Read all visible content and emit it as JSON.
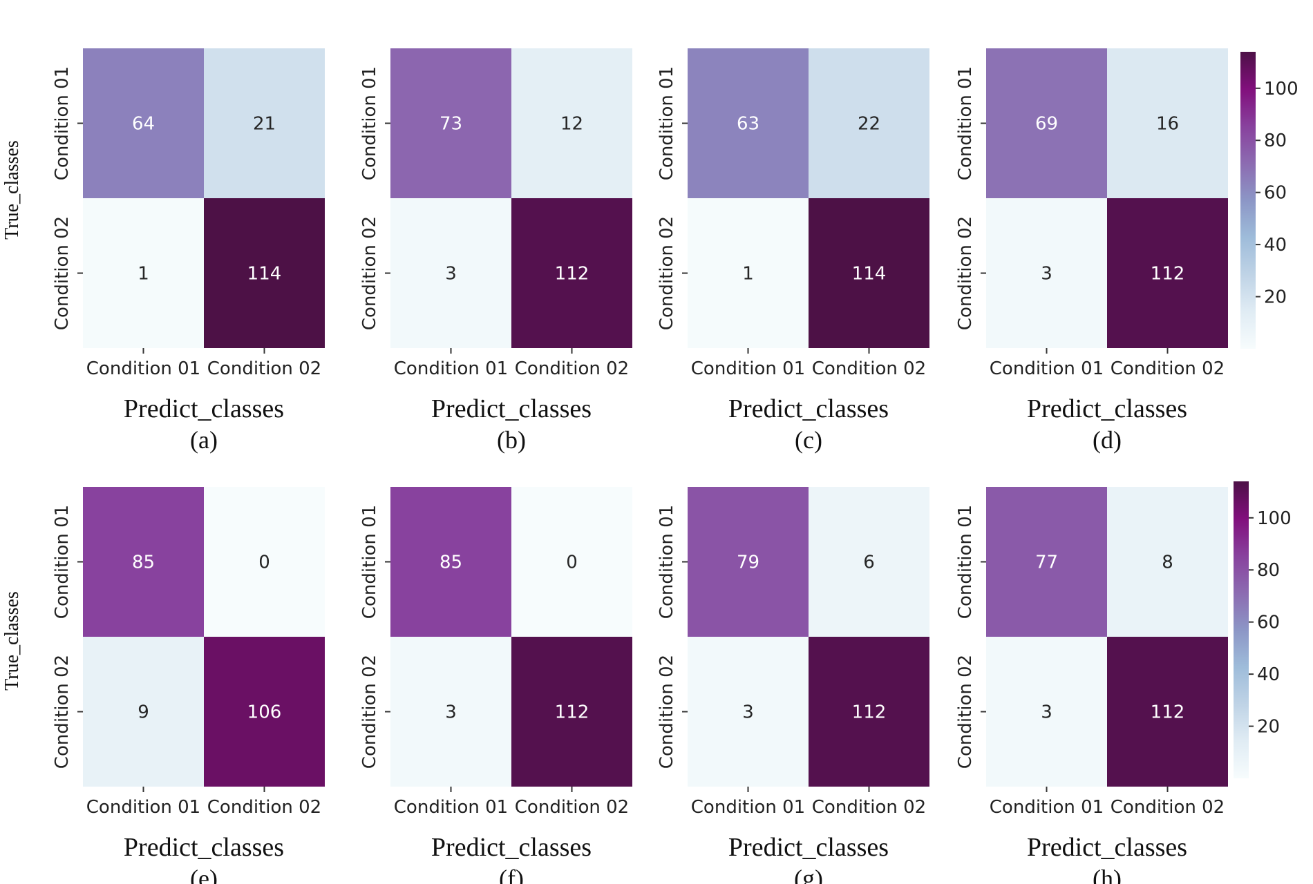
{
  "figure": {
    "row_labels": [
      "True_classes",
      "True_classes"
    ]
  },
  "colormap": {
    "name": "BuPu",
    "min": 0,
    "max": 114,
    "stops": [
      "#f7fcfd",
      "#e0ecf4",
      "#bfd3e6",
      "#9ebcda",
      "#8c96c6",
      "#8c6bb1",
      "#88419d",
      "#810f7c",
      "#4d1146"
    ]
  },
  "colorbars": [
    {
      "ticks": [
        20,
        40,
        60,
        80,
        100
      ]
    },
    {
      "ticks": [
        20,
        40,
        60,
        80,
        100
      ]
    }
  ],
  "chart_data": [
    {
      "type": "heatmap",
      "panel_label": "(a)",
      "xlabel": "Predict_classes",
      "ylabel": "True_classes",
      "x_categories": [
        "Condition 01",
        "Condition 02"
      ],
      "y_categories": [
        "Condition 01",
        "Condition 02"
      ],
      "values": [
        [
          64,
          21
        ],
        [
          1,
          114
        ]
      ]
    },
    {
      "type": "heatmap",
      "panel_label": "(b)",
      "xlabel": "Predict_classes",
      "ylabel": "",
      "x_categories": [
        "Condition 01",
        "Condition 02"
      ],
      "y_categories": [
        "Condition 01",
        "Condition 02"
      ],
      "values": [
        [
          73,
          12
        ],
        [
          3,
          112
        ]
      ]
    },
    {
      "type": "heatmap",
      "panel_label": "(c)",
      "xlabel": "Predict_classes",
      "ylabel": "",
      "x_categories": [
        "Condition 01",
        "Condition 02"
      ],
      "y_categories": [
        "Condition 01",
        "Condition 02"
      ],
      "values": [
        [
          63,
          22
        ],
        [
          1,
          114
        ]
      ]
    },
    {
      "type": "heatmap",
      "panel_label": "(d)",
      "xlabel": "Predict_classes",
      "ylabel": "",
      "x_categories": [
        "Condition 01",
        "Condition 02"
      ],
      "y_categories": [
        "Condition 01",
        "Condition 02"
      ],
      "values": [
        [
          69,
          16
        ],
        [
          3,
          112
        ]
      ]
    },
    {
      "type": "heatmap",
      "panel_label": "(e)",
      "xlabel": "Predict_classes",
      "ylabel": "True_classes",
      "x_categories": [
        "Condition 01",
        "Condition 02"
      ],
      "y_categories": [
        "Condition 01",
        "Condition 02"
      ],
      "values": [
        [
          85,
          0
        ],
        [
          9,
          106
        ]
      ]
    },
    {
      "type": "heatmap",
      "panel_label": "(f)",
      "xlabel": "Predict_classes",
      "ylabel": "",
      "x_categories": [
        "Condition 01",
        "Condition 02"
      ],
      "y_categories": [
        "Condition 01",
        "Condition 02"
      ],
      "values": [
        [
          85,
          0
        ],
        [
          3,
          112
        ]
      ]
    },
    {
      "type": "heatmap",
      "panel_label": "(g)",
      "xlabel": "Predict_classes",
      "ylabel": "",
      "x_categories": [
        "Condition 01",
        "Condition 02"
      ],
      "y_categories": [
        "Condition 01",
        "Condition 02"
      ],
      "values": [
        [
          79,
          6
        ],
        [
          3,
          112
        ]
      ]
    },
    {
      "type": "heatmap",
      "panel_label": "(h)",
      "xlabel": "Predict_classes",
      "ylabel": "",
      "x_categories": [
        "Condition 01",
        "Condition 02"
      ],
      "y_categories": [
        "Condition 01",
        "Condition 02"
      ],
      "values": [
        [
          77,
          8
        ],
        [
          3,
          112
        ]
      ]
    }
  ]
}
